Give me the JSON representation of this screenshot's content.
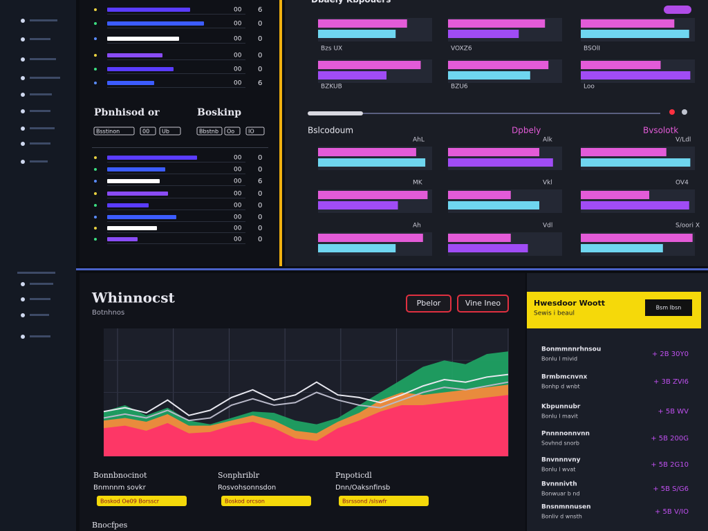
{
  "panel_a": {
    "rows_top": [
      {
        "value": "00",
        "flag": "6",
        "bar": 60
      },
      {
        "value": "00",
        "flag": "0",
        "bar": 70
      },
      {
        "value": "00",
        "flag": "0",
        "bar": 52
      },
      {
        "value": "00",
        "flag": "0",
        "bar": 40
      },
      {
        "value": "00",
        "flag": "0",
        "bar": 48
      },
      {
        "value": "00",
        "flag": "6",
        "bar": 34
      }
    ],
    "heading_1": "Pbnhisod or",
    "heading_2": "Boskinp",
    "tags": [
      "Bsstinon",
      "00",
      "Ub",
      "Bbstnb",
      "Oo",
      "IO"
    ],
    "rows_bottom": [
      {
        "value": "00",
        "flag": "0",
        "bar": 65
      },
      {
        "value": "00",
        "flag": "0",
        "bar": 42
      },
      {
        "value": "00",
        "flag": "6",
        "bar": 38
      },
      {
        "value": "00",
        "flag": "0",
        "bar": 44
      },
      {
        "value": "00",
        "flag": "0",
        "bar": 30
      },
      {
        "value": "00",
        "flag": "0",
        "bar": 50
      },
      {
        "value": "00",
        "flag": "0",
        "bar": 36
      },
      {
        "value": "00",
        "flag": "0",
        "bar": 22
      }
    ]
  },
  "panel_b": {
    "title": "Dbaely Kbpouers",
    "cards_top": [
      {
        "label": "Bzs UX",
        "bars": [
          78,
          68
        ]
      },
      {
        "label": "VOXZ6",
        "bars": [
          85,
          62
        ]
      },
      {
        "label": "BSOlI",
        "bars": [
          82,
          95
        ]
      },
      {
        "label": "BZKUB",
        "bars": [
          90,
          60
        ]
      },
      {
        "label": "BZU6",
        "bars": [
          88,
          72
        ]
      },
      {
        "label": "Loo",
        "bars": [
          70,
          96
        ]
      }
    ],
    "section_labels": [
      "Bslcodoum",
      "Dpbely",
      "Bvsolotk"
    ],
    "cards_bottom": [
      {
        "label": "AhL",
        "bars": [
          86,
          94
        ]
      },
      {
        "label": "Alk",
        "bars": [
          80,
          92
        ]
      },
      {
        "label": "V/Ldl",
        "bars": [
          75,
          96
        ]
      },
      {
        "label": "MK",
        "bars": [
          96,
          70
        ]
      },
      {
        "label": "Vkl",
        "bars": [
          55,
          80
        ]
      },
      {
        "label": "OV4",
        "bars": [
          60,
          95
        ]
      },
      {
        "label": "Ah",
        "bars": [
          92,
          68
        ]
      },
      {
        "label": "Vdl",
        "bars": [
          55,
          70
        ]
      },
      {
        "label": "S/oori X",
        "bars": [
          98,
          72
        ]
      }
    ]
  },
  "chart": {
    "title": "Whinnocst",
    "subtitle": "Botnhnos",
    "buttons": [
      "Pbelor",
      "Vine Ineo"
    ],
    "ylim": [
      0,
      100
    ],
    "areas": [
      {
        "color": "#1fa765",
        "values": [
          35,
          40,
          32,
          38,
          28,
          25,
          30,
          35,
          34,
          28,
          25,
          30,
          40,
          50,
          60,
          70,
          75,
          72,
          80,
          82
        ]
      },
      {
        "color": "#ff8a3a",
        "values": [
          28,
          30,
          27,
          33,
          24,
          24,
          28,
          32,
          28,
          20,
          18,
          27,
          34,
          44,
          50,
          48,
          50,
          52,
          54,
          56
        ]
      },
      {
        "color": "#ff2d6a",
        "values": [
          22,
          24,
          20,
          26,
          18,
          19,
          24,
          27,
          22,
          14,
          12,
          22,
          28,
          35,
          40,
          40,
          42,
          44,
          46,
          48
        ]
      }
    ],
    "lines": [
      {
        "color": "#e8e8f0",
        "values": [
          35,
          38,
          34,
          44,
          32,
          36,
          46,
          52,
          44,
          48,
          58,
          48,
          46,
          42,
          48,
          55,
          60,
          58,
          62,
          64
        ]
      },
      {
        "color": "#b8b8c8",
        "values": [
          30,
          33,
          30,
          36,
          28,
          30,
          40,
          45,
          40,
          42,
          50,
          44,
          40,
          38,
          44,
          50,
          54,
          52,
          55,
          58
        ]
      }
    ],
    "columns": [
      {
        "title": "Bonnbnocinot",
        "subtitle": "Bnmnnm sovkr",
        "tag": "Boskod Oe09 Borsscr"
      },
      {
        "title": "Sonphriblr",
        "subtitle": "Rosvohsonnsdon",
        "tag": "Boskod orcson"
      },
      {
        "title": "Pnpoticdl",
        "subtitle": "Dnn/Oaksnfinsb",
        "tag": "Bsrssond /slswfr"
      }
    ],
    "footer_heading": "Bnocfpes"
  },
  "side_panel": {
    "title": "Hwesdoor Woott",
    "subtitle": "Sewis i beaul",
    "button": "Bsm Ibsn",
    "items": [
      {
        "title": "Bonmmnnrhnsou",
        "subtitle": "Bonlu l mivid",
        "value": "+ 2B 30Y0"
      },
      {
        "title": "Brmbmcnvnx",
        "subtitle": "Bonhp d wnbt",
        "value": "+ 3B ZVI6"
      },
      {
        "title": "Kbpunnubr",
        "subtitle": "Bonlu l mavit",
        "value": "+ 5B WV"
      },
      {
        "title": "Pnnnnonnvnn",
        "subtitle": "Sovhnd snorb",
        "value": "+ 5B 200G"
      },
      {
        "title": "Bnvnnnvny",
        "subtitle": "Bonlu l wvat",
        "value": "+ 5B 2G10"
      },
      {
        "title": "Bvnnnivth",
        "subtitle": "Bonwuar b nd",
        "value": "+ 5B S/G6"
      },
      {
        "title": "Bnsnmnnusen",
        "subtitle": "Bonliv d wnsth",
        "value": "+ 5B V/IO"
      }
    ]
  }
}
